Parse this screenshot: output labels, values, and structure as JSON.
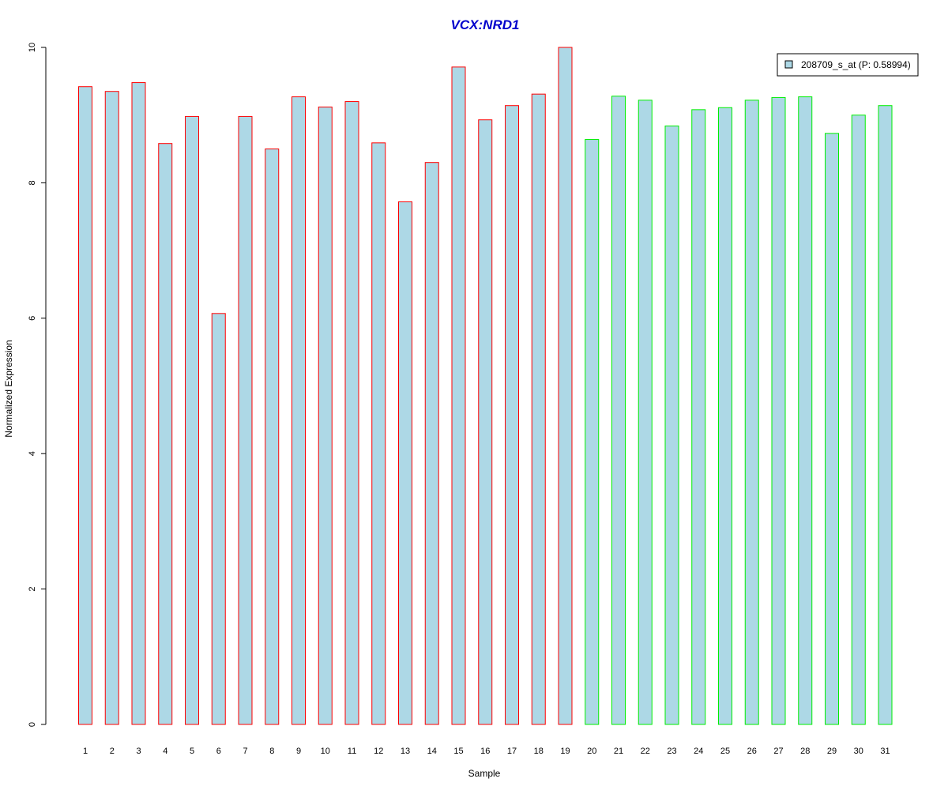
{
  "chart_data": {
    "type": "bar",
    "title": "VCX:NRD1",
    "xlabel": "Sample",
    "ylabel": "Normalized Expression",
    "ylim": [
      0,
      10
    ],
    "yticks": [
      "0",
      "2",
      "4",
      "6",
      "8",
      "10"
    ],
    "categories": [
      "1",
      "2",
      "3",
      "4",
      "5",
      "6",
      "7",
      "8",
      "9",
      "10",
      "11",
      "12",
      "13",
      "14",
      "15",
      "16",
      "17",
      "18",
      "19",
      "20",
      "21",
      "22",
      "23",
      "24",
      "25",
      "26",
      "27",
      "28",
      "29",
      "30",
      "31"
    ],
    "series": [
      {
        "name": "208709_s_at (P: 0.58994)",
        "values": [
          9.42,
          9.35,
          9.48,
          8.58,
          8.98,
          6.07,
          8.98,
          8.5,
          9.27,
          9.12,
          9.2,
          8.59,
          7.72,
          8.3,
          9.71,
          8.93,
          9.14,
          9.31,
          10.0,
          8.64,
          9.28,
          9.22,
          8.84,
          9.08,
          9.11,
          9.22,
          9.26,
          9.27,
          8.73,
          9.0,
          9.14
        ],
        "group": [
          "a",
          "a",
          "a",
          "a",
          "a",
          "a",
          "a",
          "a",
          "a",
          "a",
          "a",
          "a",
          "a",
          "a",
          "a",
          "a",
          "a",
          "a",
          "a",
          "b",
          "b",
          "b",
          "b",
          "b",
          "b",
          "b",
          "b",
          "b",
          "b",
          "b",
          "b"
        ]
      }
    ],
    "legend": {
      "position": "top-right",
      "label": "208709_s_at (P: 0.58994)"
    },
    "grid": false,
    "colors": {
      "bar_fill": "#add8e6",
      "group_a_border": "#ff0000",
      "group_b_border": "#00ee00",
      "title": "#0000cc",
      "axis": "#000000"
    }
  }
}
